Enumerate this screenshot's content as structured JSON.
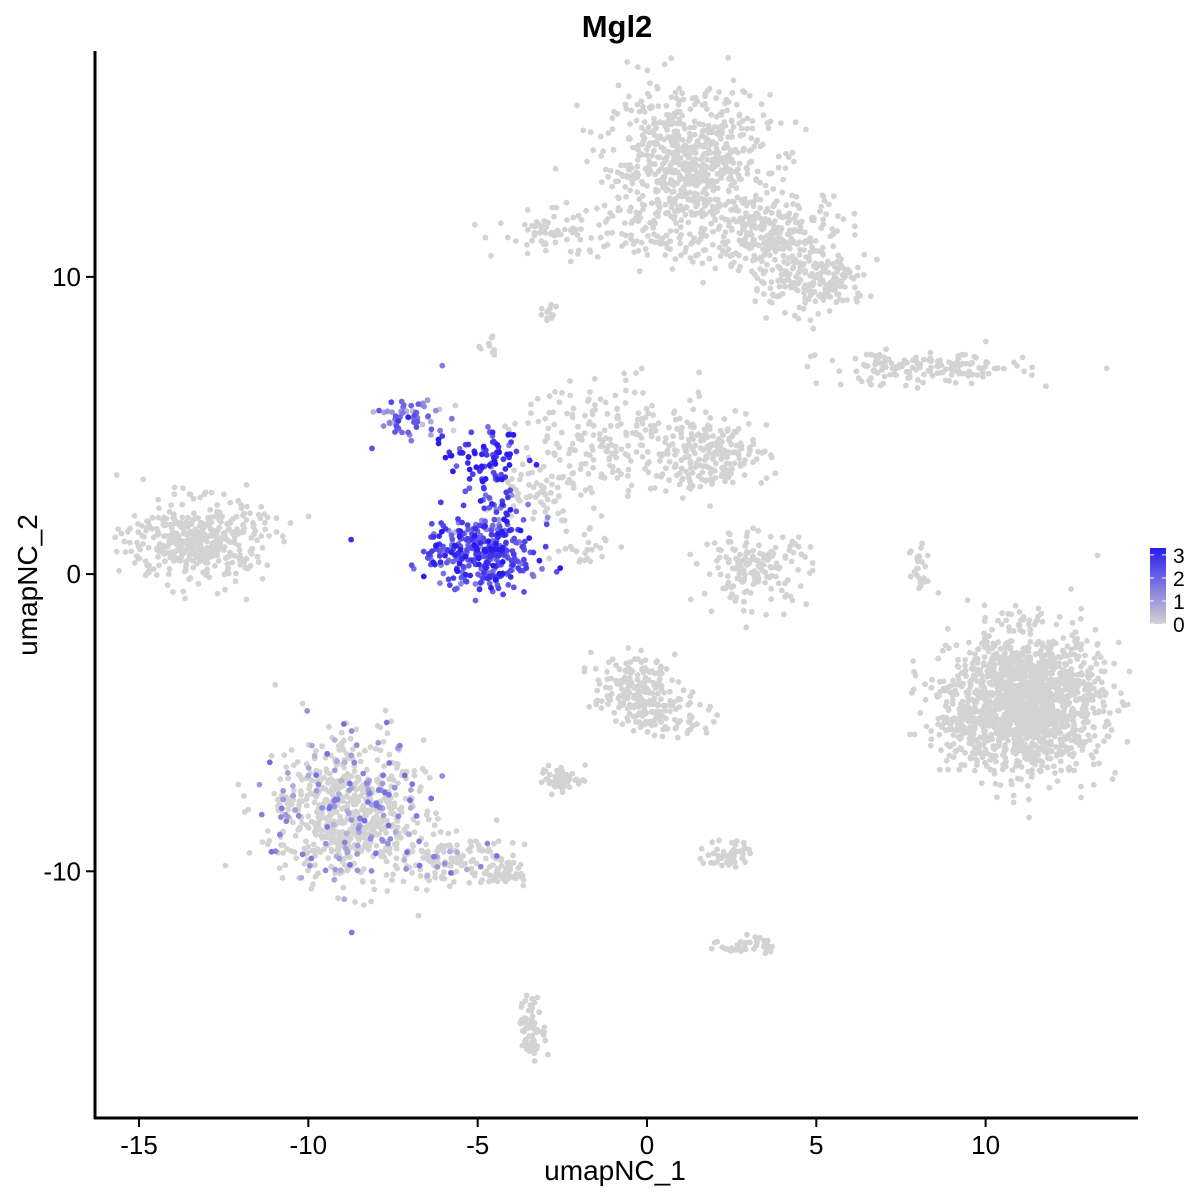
{
  "chart_data": {
    "type": "scatter",
    "title": "Mgl2",
    "xlabel": "umapNC_1",
    "ylabel": "umapNC_2",
    "xlim": [
      -16.3,
      14.5
    ],
    "ylim": [
      -18.3,
      17.6
    ],
    "x_ticks": [
      -15,
      -10,
      -5,
      0,
      5,
      10
    ],
    "x_tick_labels": [
      "-15",
      "-10",
      "-5",
      "0",
      "5",
      "10"
    ],
    "y_ticks": [
      -10,
      0,
      10
    ],
    "y_tick_labels": [
      "-10",
      "0",
      "10"
    ],
    "grid": false,
    "legend": {
      "placement": "right",
      "labels": [
        "3",
        "2",
        "1",
        "0"
      ],
      "values": [
        3,
        2,
        1,
        0
      ],
      "color_low": "#d3d3d3",
      "color_high": "#2a1cf0"
    },
    "point_color_zero": "#d3d3d3",
    "clusters": [
      {
        "name": "top-right-large",
        "cx": 1.2,
        "cy": 13.8,
        "sx": 1.2,
        "sy": 1.2,
        "n": 700,
        "expr": 0
      },
      {
        "name": "top-right-arm",
        "cx": 3.6,
        "cy": 11.5,
        "sx": 1.2,
        "sy": 0.7,
        "n": 260,
        "expr": 0
      },
      {
        "name": "top-right-tip",
        "cx": 5.3,
        "cy": 9.8,
        "sx": 0.6,
        "sy": 0.45,
        "n": 150,
        "expr": 0
      },
      {
        "name": "top-right-lower",
        "cx": 4.0,
        "cy": 10.2,
        "sx": 0.5,
        "sy": 0.8,
        "n": 60,
        "expr": 0
      },
      {
        "name": "top-center-strip",
        "cx": -2.3,
        "cy": 11.5,
        "sx": 1.1,
        "sy": 0.4,
        "n": 90,
        "expr": 0
      },
      {
        "name": "top-center-tail",
        "cx": 0.5,
        "cy": 11.1,
        "sx": 0.9,
        "sy": 0.25,
        "n": 30,
        "expr": 0
      },
      {
        "name": "small-a",
        "cx": -2.9,
        "cy": 8.8,
        "sx": 0.2,
        "sy": 0.15,
        "n": 12,
        "expr": 0
      },
      {
        "name": "small-b",
        "cx": -4.6,
        "cy": 7.5,
        "sx": 0.12,
        "sy": 0.2,
        "n": 10,
        "expr": 0
      },
      {
        "name": "right-strip",
        "cx": 8.2,
        "cy": 6.9,
        "sx": 1.5,
        "sy": 0.28,
        "n": 160,
        "expr": 0
      },
      {
        "name": "center-stream",
        "cx": -0.8,
        "cy": 4.6,
        "sx": 1.6,
        "sy": 0.9,
        "n": 220,
        "expr": 0
      },
      {
        "name": "center-stream-head",
        "cx": 1.8,
        "cy": 4.0,
        "sx": 0.9,
        "sy": 0.6,
        "n": 200,
        "expr": 0
      },
      {
        "name": "center-stream-base",
        "cx": -3.2,
        "cy": 2.8,
        "sx": 0.6,
        "sy": 0.5,
        "n": 60,
        "expr": 0
      },
      {
        "name": "diagonal-thin",
        "cx": -2.0,
        "cy": 1.0,
        "sx": 0.5,
        "sy": 0.35,
        "n": 25,
        "expr": 0
      },
      {
        "name": "left-cluster",
        "cx": -13.3,
        "cy": 1.1,
        "sx": 1.0,
        "sy": 0.7,
        "n": 420,
        "expr": 0
      },
      {
        "name": "expressing-upper",
        "cx": -7.0,
        "cy": 5.3,
        "sx": 0.5,
        "sy": 0.4,
        "n": 60,
        "expr": 1.3
      },
      {
        "name": "expressing-bridge",
        "cx": -4.8,
        "cy": 3.8,
        "sx": 0.6,
        "sy": 0.5,
        "n": 80,
        "expr": 2.6
      },
      {
        "name": "expressing-stem",
        "cx": -4.4,
        "cy": 2.0,
        "sx": 0.4,
        "sy": 0.7,
        "n": 50,
        "expr": 2.0
      },
      {
        "name": "expressing-lower",
        "cx": -4.9,
        "cy": 0.7,
        "sx": 0.8,
        "sy": 0.6,
        "n": 320,
        "expr": 2.2
      },
      {
        "name": "mid-right-ring",
        "cx": 3.2,
        "cy": 0.2,
        "sx": 0.8,
        "sy": 0.6,
        "n": 160,
        "expr": 0
      },
      {
        "name": "right-thin-column",
        "cx": 8.1,
        "cy": 0.2,
        "sx": 0.18,
        "sy": 0.6,
        "n": 25,
        "expr": 0
      },
      {
        "name": "far-right-large",
        "cx": 11.2,
        "cy": -4.3,
        "sx": 1.1,
        "sy": 1.15,
        "n": 1600,
        "expr": 0
      },
      {
        "name": "far-right-spill",
        "cx": 9.3,
        "cy": -5.2,
        "sx": 0.5,
        "sy": 0.5,
        "n": 80,
        "expr": 0
      },
      {
        "name": "mid-lower",
        "cx": -0.4,
        "cy": -3.9,
        "sx": 0.6,
        "sy": 0.55,
        "n": 180,
        "expr": 0
      },
      {
        "name": "mid-lower-arm",
        "cx": 0.8,
        "cy": -4.8,
        "sx": 0.6,
        "sy": 0.4,
        "n": 60,
        "expr": 0
      },
      {
        "name": "small-lower-a",
        "cx": -2.5,
        "cy": -6.9,
        "sx": 0.35,
        "sy": 0.2,
        "n": 50,
        "expr": 0
      },
      {
        "name": "small-lower-b",
        "cx": 2.4,
        "cy": -9.4,
        "sx": 0.35,
        "sy": 0.25,
        "n": 50,
        "expr": 0
      },
      {
        "name": "small-lower-c",
        "cx": 3.0,
        "cy": -12.5,
        "sx": 0.4,
        "sy": 0.15,
        "n": 40,
        "expr": 0
      },
      {
        "name": "small-lower-d",
        "cx": -3.4,
        "cy": -15.3,
        "sx": 0.2,
        "sy": 0.5,
        "n": 70,
        "expr": 0
      },
      {
        "name": "bottom-left-large",
        "cx": -8.8,
        "cy": -8.0,
        "sx": 1.1,
        "sy": 1.2,
        "n": 750,
        "expr": 0.15
      },
      {
        "name": "bottom-left-tail",
        "cx": -5.7,
        "cy": -9.6,
        "sx": 0.9,
        "sy": 0.4,
        "n": 140,
        "expr": 0.1
      },
      {
        "name": "bottom-left-tip",
        "cx": -4.2,
        "cy": -10.2,
        "sx": 0.3,
        "sy": 0.2,
        "n": 40,
        "expr": 0
      }
    ]
  }
}
